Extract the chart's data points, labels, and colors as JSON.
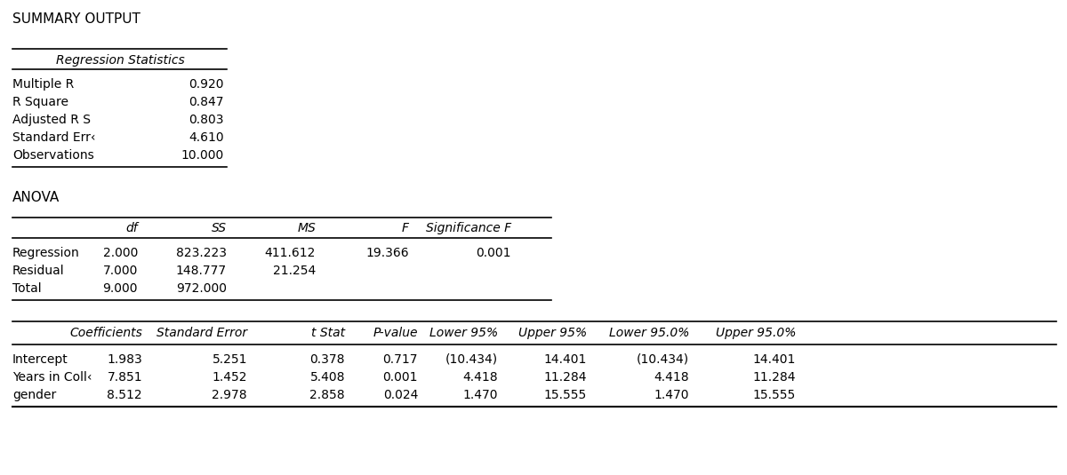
{
  "title": "SUMMARY OUTPUT",
  "bg_color": "#ffffff",
  "reg_stats_header": "Regression Statistics",
  "reg_stats_labels": [
    "Multiple R",
    "R Square",
    "Adjusted R S",
    "Standard Errن",
    "Observations"
  ],
  "reg_stats_label_display": [
    "Multiple R",
    "R Square",
    "Adjusted R S",
    "Standard Err‹",
    "Observations"
  ],
  "reg_stats_values": [
    "0.920",
    "0.847",
    "0.803",
    "4.610",
    "10.000"
  ],
  "anova_title": "ANOVA",
  "anova_headers": [
    "",
    "df",
    "SS",
    "MS",
    "F",
    "Significance F"
  ],
  "anova_rows": [
    [
      "Regression",
      "2.000",
      "823.223",
      "411.612",
      "19.366",
      "0.001"
    ],
    [
      "Residual",
      "7.000",
      "148.777",
      "21.254",
      "",
      ""
    ],
    [
      "Total",
      "9.000",
      "972.000",
      "",
      "",
      ""
    ]
  ],
  "coef_headers": [
    "",
    "Coefficients",
    "Standard Error",
    "t Stat",
    "P-value",
    "Lower 95%",
    "Upper 95%",
    "Lower 95.0%",
    "Upper 95.0%"
  ],
  "coef_rows": [
    [
      "Intercept",
      "1.983",
      "5.251",
      "0.378",
      "0.717",
      "(10.434)",
      "14.401",
      "(10.434)",
      "14.401"
    ],
    [
      "Years in Coll‹",
      "7.851",
      "1.452",
      "5.408",
      "0.001",
      "4.418",
      "11.284",
      "4.418",
      "11.284"
    ],
    [
      "gender",
      "8.512",
      "2.978",
      "2.858",
      "0.024",
      "1.470",
      "15.555",
      "1.470",
      "15.555"
    ]
  ],
  "font_size": 10.0,
  "title_font_size": 11.0
}
